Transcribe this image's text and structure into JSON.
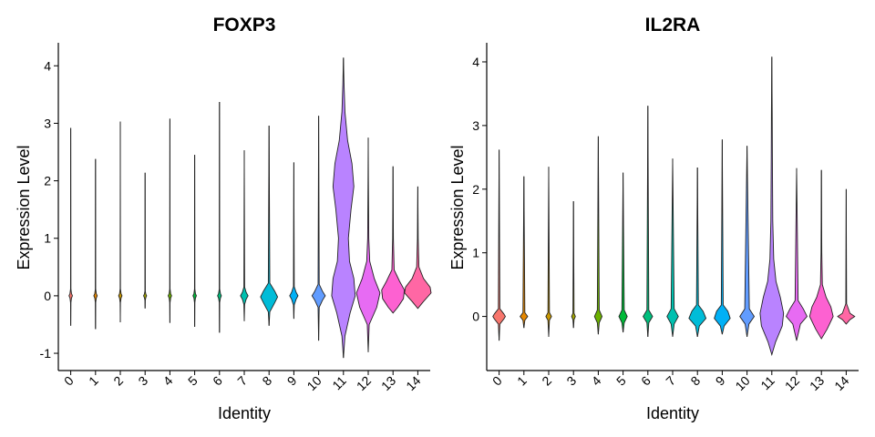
{
  "chart_data": [
    {
      "type": "violin",
      "title": "FOXP3",
      "xlabel": "Identity",
      "ylabel": "Expression Level",
      "ylim": [
        -1.3,
        4.4
      ],
      "yticks": [
        -1,
        0,
        1,
        2,
        3,
        4
      ],
      "categories": [
        "0",
        "1",
        "2",
        "3",
        "4",
        "5",
        "6",
        "7",
        "8",
        "9",
        "10",
        "11",
        "12",
        "13",
        "14"
      ],
      "colors": [
        "#F8766D",
        "#E58700",
        "#C99800",
        "#A3A500",
        "#6BB100",
        "#00BA38",
        "#00BF7D",
        "#00C0AF",
        "#00BCD8",
        "#00B0F6",
        "#619CFF",
        "#B983FF",
        "#E76BF3",
        "#FD61D1",
        "#FF67A4"
      ],
      "series": [
        {
          "category": "0",
          "min": -0.52,
          "max": 2.92,
          "profile": [
            [
              -0.52,
              0
            ],
            [
              -0.12,
              0.008
            ],
            [
              -0.04,
              0.04
            ],
            [
              0.0,
              0.09
            ],
            [
              0.04,
              0.04
            ],
            [
              0.12,
              0.008
            ],
            [
              2.92,
              0
            ]
          ]
        },
        {
          "category": "1",
          "min": -0.58,
          "max": 2.38,
          "profile": [
            [
              -0.58,
              0
            ],
            [
              -0.12,
              0.008
            ],
            [
              -0.04,
              0.04
            ],
            [
              0.0,
              0.09
            ],
            [
              0.04,
              0.04
            ],
            [
              0.12,
              0.008
            ],
            [
              2.38,
              0
            ]
          ]
        },
        {
          "category": "2",
          "min": -0.46,
          "max": 3.03,
          "profile": [
            [
              -0.46,
              0
            ],
            [
              -0.12,
              0.008
            ],
            [
              -0.04,
              0.04
            ],
            [
              0.0,
              0.09
            ],
            [
              0.04,
              0.04
            ],
            [
              0.12,
              0.008
            ],
            [
              3.03,
              0
            ]
          ]
        },
        {
          "category": "3",
          "min": -0.22,
          "max": 2.14,
          "profile": [
            [
              -0.22,
              0
            ],
            [
              -0.08,
              0.008
            ],
            [
              -0.03,
              0.04
            ],
            [
              0.0,
              0.08
            ],
            [
              0.03,
              0.04
            ],
            [
              0.08,
              0.008
            ],
            [
              2.14,
              0
            ]
          ]
        },
        {
          "category": "4",
          "min": -0.47,
          "max": 3.08,
          "profile": [
            [
              -0.47,
              0
            ],
            [
              -0.12,
              0.008
            ],
            [
              -0.04,
              0.04
            ],
            [
              0.0,
              0.09
            ],
            [
              0.04,
              0.04
            ],
            [
              0.12,
              0.008
            ],
            [
              3.08,
              0
            ]
          ]
        },
        {
          "category": "5",
          "min": -0.54,
          "max": 2.45,
          "profile": [
            [
              -0.54,
              0
            ],
            [
              -0.12,
              0.008
            ],
            [
              -0.04,
              0.04
            ],
            [
              0.0,
              0.09
            ],
            [
              0.04,
              0.04
            ],
            [
              0.12,
              0.008
            ],
            [
              2.45,
              0
            ]
          ]
        },
        {
          "category": "6",
          "min": -0.64,
          "max": 3.37,
          "profile": [
            [
              -0.64,
              0
            ],
            [
              -0.12,
              0.01
            ],
            [
              -0.04,
              0.05
            ],
            [
              0.0,
              0.1
            ],
            [
              0.04,
              0.05
            ],
            [
              0.12,
              0.01
            ],
            [
              3.37,
              0
            ]
          ]
        },
        {
          "category": "7",
          "min": -0.44,
          "max": 2.53,
          "profile": [
            [
              -0.44,
              0
            ],
            [
              -0.15,
              0.02
            ],
            [
              -0.06,
              0.1
            ],
            [
              0.0,
              0.2
            ],
            [
              0.06,
              0.1
            ],
            [
              0.15,
              0.02
            ],
            [
              2.53,
              0
            ]
          ]
        },
        {
          "category": "8",
          "min": -0.52,
          "max": 2.96,
          "profile": [
            [
              -0.52,
              0
            ],
            [
              -0.28,
              0.04
            ],
            [
              -0.12,
              0.3
            ],
            [
              -0.02,
              0.45
            ],
            [
              0.08,
              0.3
            ],
            [
              0.22,
              0.04
            ],
            [
              2.96,
              0
            ]
          ]
        },
        {
          "category": "9",
          "min": -0.4,
          "max": 2.32,
          "profile": [
            [
              -0.4,
              0
            ],
            [
              -0.16,
              0.02
            ],
            [
              -0.06,
              0.12
            ],
            [
              0.0,
              0.22
            ],
            [
              0.06,
              0.12
            ],
            [
              0.16,
              0.02
            ],
            [
              2.32,
              0
            ]
          ]
        },
        {
          "category": "10",
          "min": -0.78,
          "max": 3.13,
          "profile": [
            [
              -0.78,
              0
            ],
            [
              -0.2,
              0.03
            ],
            [
              -0.08,
              0.2
            ],
            [
              0.0,
              0.35
            ],
            [
              0.08,
              0.2
            ],
            [
              0.2,
              0.03
            ],
            [
              3.13,
              0
            ]
          ]
        },
        {
          "category": "11",
          "min": -1.08,
          "max": 4.14,
          "profile": [
            [
              -1.08,
              0
            ],
            [
              -0.7,
              0.08
            ],
            [
              -0.3,
              0.35
            ],
            [
              0.0,
              0.62
            ],
            [
              0.3,
              0.55
            ],
            [
              0.6,
              0.32
            ],
            [
              1.0,
              0.26
            ],
            [
              1.5,
              0.4
            ],
            [
              1.9,
              0.55
            ],
            [
              2.3,
              0.45
            ],
            [
              2.7,
              0.22
            ],
            [
              3.2,
              0.08
            ],
            [
              3.7,
              0.03
            ],
            [
              4.14,
              0
            ]
          ]
        },
        {
          "category": "12",
          "min": -0.98,
          "max": 2.75,
          "profile": [
            [
              -0.98,
              0
            ],
            [
              -0.5,
              0.05
            ],
            [
              -0.2,
              0.45
            ],
            [
              0.05,
              0.62
            ],
            [
              0.3,
              0.32
            ],
            [
              0.6,
              0.08
            ],
            [
              1.0,
              0.03
            ],
            [
              2.0,
              0.01
            ],
            [
              2.75,
              0
            ]
          ]
        },
        {
          "category": "13",
          "min": -0.3,
          "max": 2.25,
          "profile": [
            [
              -0.3,
              0
            ],
            [
              -0.2,
              0.25
            ],
            [
              -0.05,
              0.55
            ],
            [
              0.1,
              0.6
            ],
            [
              0.25,
              0.35
            ],
            [
              0.45,
              0.06
            ],
            [
              1.0,
              0.02
            ],
            [
              2.25,
              0
            ]
          ]
        },
        {
          "category": "14",
          "min": -0.22,
          "max": 1.9,
          "profile": [
            [
              -0.22,
              0
            ],
            [
              -0.1,
              0.3
            ],
            [
              0.05,
              0.7
            ],
            [
              0.15,
              0.65
            ],
            [
              0.3,
              0.3
            ],
            [
              0.5,
              0.06
            ],
            [
              1.0,
              0.02
            ],
            [
              1.9,
              0
            ]
          ]
        }
      ]
    },
    {
      "type": "violin",
      "title": "IL2RA",
      "xlabel": "Identity",
      "ylabel": "Expression Level",
      "ylim": [
        -0.85,
        4.3
      ],
      "yticks": [
        0,
        1,
        2,
        3,
        4
      ],
      "categories": [
        "0",
        "1",
        "2",
        "3",
        "4",
        "5",
        "6",
        "7",
        "8",
        "9",
        "10",
        "11",
        "12",
        "13",
        "14"
      ],
      "colors": [
        "#F8766D",
        "#E58700",
        "#C99800",
        "#A3A500",
        "#6BB100",
        "#00BA38",
        "#00BF7D",
        "#00C0AF",
        "#00BCD8",
        "#00B0F6",
        "#619CFF",
        "#B983FF",
        "#E76BF3",
        "#FD61D1",
        "#FF67A4"
      ],
      "series": [
        {
          "category": "0",
          "min": -0.38,
          "max": 2.62,
          "profile": [
            [
              -0.38,
              0
            ],
            [
              -0.12,
              0.04
            ],
            [
              -0.04,
              0.25
            ],
            [
              0.0,
              0.33
            ],
            [
              0.04,
              0.25
            ],
            [
              0.12,
              0.04
            ],
            [
              2.62,
              0
            ]
          ]
        },
        {
          "category": "1",
          "min": -0.18,
          "max": 2.2,
          "profile": [
            [
              -0.18,
              0
            ],
            [
              -0.06,
              0.05
            ],
            [
              0.0,
              0.2
            ],
            [
              0.06,
              0.05
            ],
            [
              2.2,
              0
            ]
          ]
        },
        {
          "category": "2",
          "min": -0.32,
          "max": 2.35,
          "profile": [
            [
              -0.32,
              0
            ],
            [
              -0.06,
              0.04
            ],
            [
              0.0,
              0.15
            ],
            [
              0.06,
              0.04
            ],
            [
              2.35,
              0
            ]
          ]
        },
        {
          "category": "3",
          "min": -0.18,
          "max": 1.81,
          "profile": [
            [
              -0.18,
              0
            ],
            [
              -0.05,
              0.03
            ],
            [
              0.0,
              0.1
            ],
            [
              0.05,
              0.03
            ],
            [
              1.81,
              0
            ]
          ]
        },
        {
          "category": "4",
          "min": -0.28,
          "max": 2.83,
          "profile": [
            [
              -0.28,
              0
            ],
            [
              -0.1,
              0.05
            ],
            [
              0.0,
              0.2
            ],
            [
              0.1,
              0.05
            ],
            [
              2.83,
              0
            ]
          ]
        },
        {
          "category": "5",
          "min": -0.25,
          "max": 2.26,
          "profile": [
            [
              -0.25,
              0
            ],
            [
              -0.1,
              0.06
            ],
            [
              0.0,
              0.22
            ],
            [
              0.1,
              0.06
            ],
            [
              2.26,
              0
            ]
          ]
        },
        {
          "category": "6",
          "min": -0.32,
          "max": 3.31,
          "profile": [
            [
              -0.32,
              0
            ],
            [
              -0.1,
              0.05
            ],
            [
              0.0,
              0.25
            ],
            [
              0.1,
              0.05
            ],
            [
              3.31,
              0
            ]
          ]
        },
        {
          "category": "7",
          "min": -0.32,
          "max": 2.48,
          "profile": [
            [
              -0.32,
              0
            ],
            [
              -0.12,
              0.08
            ],
            [
              0.0,
              0.3
            ],
            [
              0.12,
              0.08
            ],
            [
              2.48,
              0
            ]
          ]
        },
        {
          "category": "8",
          "min": -0.32,
          "max": 2.34,
          "profile": [
            [
              -0.32,
              0
            ],
            [
              -0.15,
              0.1
            ],
            [
              -0.03,
              0.45
            ],
            [
              0.08,
              0.3
            ],
            [
              0.18,
              0.05
            ],
            [
              2.34,
              0
            ]
          ]
        },
        {
          "category": "9",
          "min": -0.28,
          "max": 2.78,
          "profile": [
            [
              -0.28,
              0
            ],
            [
              -0.15,
              0.1
            ],
            [
              -0.03,
              0.42
            ],
            [
              0.08,
              0.3
            ],
            [
              0.18,
              0.05
            ],
            [
              2.78,
              0
            ]
          ]
        },
        {
          "category": "10",
          "min": -0.32,
          "max": 2.68,
          "profile": [
            [
              -0.32,
              0
            ],
            [
              -0.12,
              0.1
            ],
            [
              0.0,
              0.38
            ],
            [
              0.12,
              0.12
            ],
            [
              2.68,
              0
            ]
          ]
        },
        {
          "category": "11",
          "min": -0.6,
          "max": 4.08,
          "profile": [
            [
              -0.6,
              0
            ],
            [
              -0.4,
              0.2
            ],
            [
              -0.15,
              0.55
            ],
            [
              0.05,
              0.62
            ],
            [
              0.3,
              0.45
            ],
            [
              0.55,
              0.22
            ],
            [
              0.9,
              0.1
            ],
            [
              1.5,
              0.05
            ],
            [
              2.5,
              0.03
            ],
            [
              3.2,
              0.02
            ],
            [
              4.08,
              0
            ]
          ]
        },
        {
          "category": "12",
          "min": -0.38,
          "max": 2.33,
          "profile": [
            [
              -0.38,
              0
            ],
            [
              -0.12,
              0.2
            ],
            [
              0.0,
              0.55
            ],
            [
              0.12,
              0.35
            ],
            [
              0.25,
              0.08
            ],
            [
              2.33,
              0
            ]
          ]
        },
        {
          "category": "13",
          "min": -0.35,
          "max": 2.3,
          "profile": [
            [
              -0.35,
              0
            ],
            [
              -0.2,
              0.3
            ],
            [
              0.0,
              0.62
            ],
            [
              0.15,
              0.5
            ],
            [
              0.3,
              0.25
            ],
            [
              0.5,
              0.05
            ],
            [
              1.0,
              0.02
            ],
            [
              2.3,
              0
            ]
          ]
        },
        {
          "category": "14",
          "min": -0.12,
          "max": 2.0,
          "profile": [
            [
              -0.12,
              0
            ],
            [
              -0.05,
              0.2
            ],
            [
              0.0,
              0.45
            ],
            [
              0.05,
              0.2
            ],
            [
              0.2,
              0.02
            ],
            [
              2.0,
              0
            ]
          ]
        }
      ]
    }
  ]
}
